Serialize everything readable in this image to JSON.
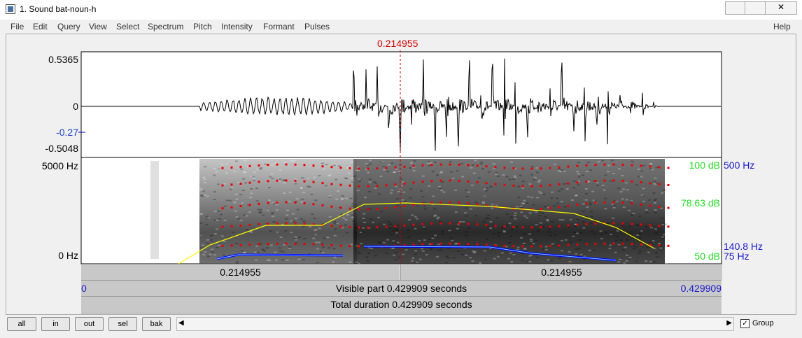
{
  "window": {
    "title": "1. Sound bat-noun-h"
  },
  "menu": {
    "items": [
      "File",
      "Edit",
      "Query",
      "View",
      "Select",
      "Spectrum",
      "Pitch",
      "Intensity",
      "Formant",
      "Pulses"
    ],
    "help": "Help"
  },
  "cursor": {
    "time": "0.214955"
  },
  "waveform": {
    "labels": {
      "top": "0.5365",
      "zero": "0",
      "cursor_value": "-0.27",
      "bottom": "-0.5048"
    }
  },
  "spectrogram": {
    "labels": {
      "top": "5000 Hz",
      "bottom": "0 Hz"
    },
    "right_labels": {
      "intensity_top": "100 dB",
      "pitch_top": "500 Hz",
      "intensity_cursor": "78.63 dB",
      "pitch_cursor": "140.8 Hz",
      "intensity_bottom": "50 dB",
      "pitch_bottom": "75 Hz"
    }
  },
  "bars": {
    "left_segment": "0.214955",
    "right_segment": "0.214955",
    "visible_start": "0",
    "visible_part": "Visible part 0.429909 seconds",
    "visible_end": "0.429909",
    "total": "Total duration 0.429909 seconds"
  },
  "toolbar": {
    "buttons": [
      "all",
      "in",
      "out",
      "sel",
      "bak"
    ],
    "group": "Group"
  }
}
